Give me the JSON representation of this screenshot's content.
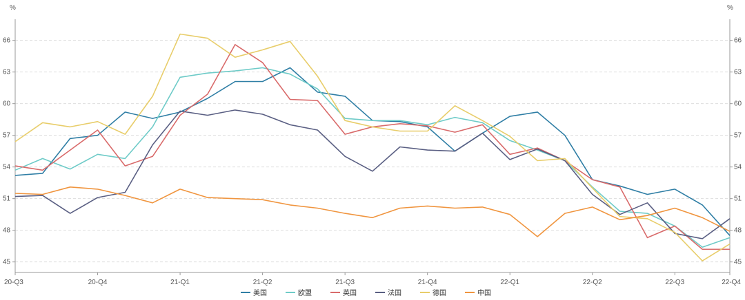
{
  "chart_data": {
    "type": "line",
    "y_unit_left": "%",
    "y_unit_right": "%",
    "ylim": [
      44,
      68
    ],
    "yticks": [
      45,
      48,
      51,
      54,
      57,
      60,
      63,
      66
    ],
    "x_labels": [
      "20-Q3",
      "20-Q4",
      "21-Q1",
      "21-Q2",
      "21-Q3",
      "21-Q4",
      "22-Q1",
      "22-Q2",
      "22-Q3",
      "22-Q4"
    ],
    "n_points": 27,
    "label_indices": [
      0,
      3,
      6,
      9,
      12,
      15,
      18,
      21,
      24,
      26
    ],
    "grid": "horizontal-dashed",
    "legend_position": "bottom",
    "series": [
      {
        "name": "美国",
        "color": "#2f7ea5",
        "values": [
          53.2,
          53.4,
          56.7,
          57.0,
          59.2,
          58.6,
          59.2,
          60.5,
          62.1,
          62.1,
          63.4,
          61.1,
          60.7,
          58.4,
          58.3,
          57.8,
          55.5,
          57.2,
          58.8,
          59.2,
          57.0,
          52.8,
          52.2,
          51.4,
          51.9,
          50.4,
          47.5
        ]
      },
      {
        "name": "欧盟",
        "color": "#6ecbc8",
        "values": [
          53.7,
          54.8,
          53.8,
          55.2,
          54.8,
          57.8,
          62.5,
          62.9,
          63.1,
          63.4,
          62.8,
          61.4,
          58.6,
          58.4,
          58.4,
          58.0,
          58.7,
          58.2,
          56.5,
          55.6,
          54.6,
          52.1,
          49.8,
          49.6,
          48.4,
          46.4,
          47.3
        ]
      },
      {
        "name": "英国",
        "color": "#d96b6b",
        "values": [
          54.1,
          53.7,
          55.6,
          57.5,
          54.1,
          55.0,
          58.9,
          60.9,
          65.6,
          63.9,
          60.4,
          60.3,
          57.1,
          57.8,
          58.1,
          57.9,
          57.3,
          58.0,
          55.2,
          55.8,
          54.6,
          52.8,
          52.1,
          47.3,
          48.4,
          46.2,
          46.2
        ]
      },
      {
        "name": "法国",
        "color": "#5a5f83",
        "values": [
          51.2,
          51.3,
          49.6,
          51.1,
          51.6,
          56.1,
          59.3,
          58.9,
          59.4,
          59.0,
          58.0,
          57.5,
          55.0,
          53.6,
          55.9,
          55.6,
          55.5,
          57.2,
          54.7,
          55.7,
          54.6,
          51.4,
          49.5,
          50.6,
          47.7,
          47.2,
          49.1
        ]
      },
      {
        "name": "德国",
        "color": "#e8cd6a",
        "values": [
          56.4,
          58.2,
          57.8,
          58.3,
          57.1,
          60.7,
          66.6,
          66.2,
          64.4,
          65.1,
          65.9,
          62.6,
          58.4,
          57.8,
          57.4,
          57.4,
          59.8,
          58.4,
          56.9,
          54.6,
          54.8,
          52.0,
          49.3,
          49.1,
          47.8,
          45.1,
          46.7
        ]
      },
      {
        "name": "中国",
        "color": "#f0953f",
        "values": [
          51.5,
          51.4,
          52.1,
          51.9,
          51.3,
          50.6,
          51.9,
          51.1,
          51.0,
          50.9,
          50.4,
          50.1,
          49.6,
          49.2,
          50.1,
          50.3,
          50.1,
          50.2,
          49.5,
          47.4,
          49.6,
          50.2,
          49.0,
          49.4,
          50.1,
          49.2,
          47.9
        ]
      }
    ]
  }
}
